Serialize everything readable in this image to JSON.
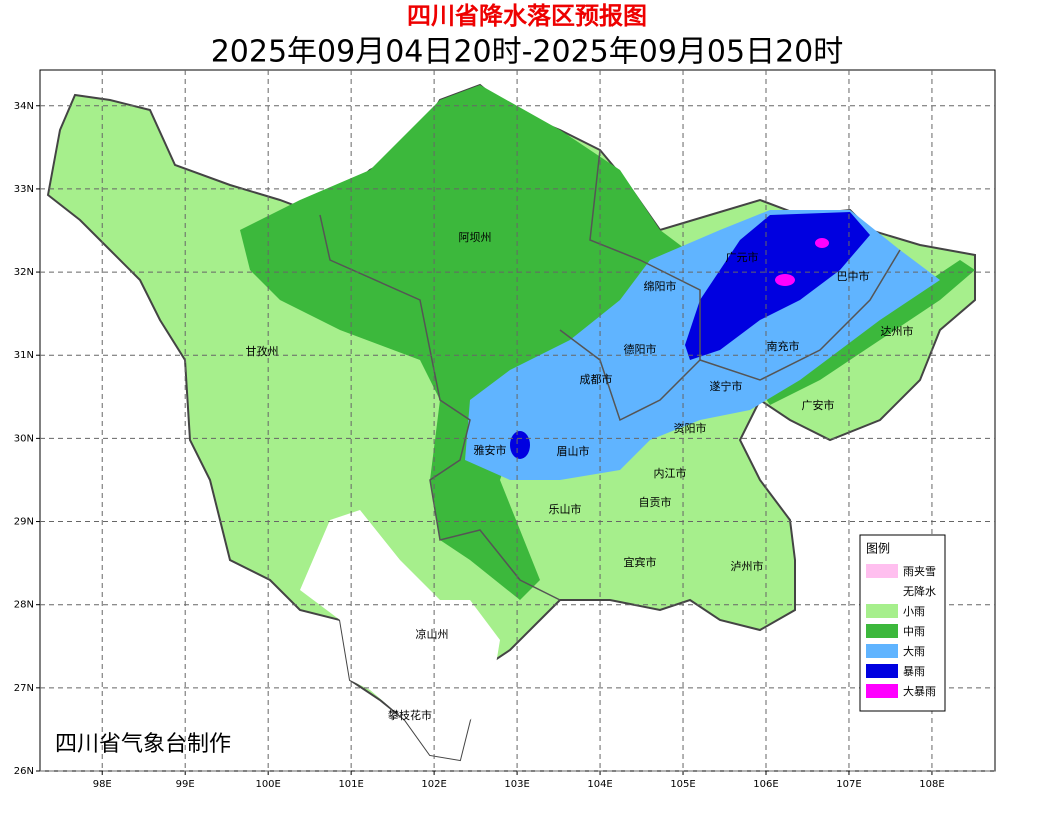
{
  "header": {
    "title": "四川省降水落区预报图",
    "subtitle": "2025年09月04日20时-2025年09月05日20时"
  },
  "map": {
    "xlim": [
      97.25,
      108.76
    ],
    "ylim": [
      26,
      34.43
    ],
    "grid": true,
    "xticks": [
      {
        "value": 98,
        "label": "98E"
      },
      {
        "value": 99,
        "label": "99E"
      },
      {
        "value": 100,
        "label": "100E"
      },
      {
        "value": 101,
        "label": "101E"
      },
      {
        "value": 102,
        "label": "102E"
      },
      {
        "value": 103,
        "label": "103E"
      },
      {
        "value": 104,
        "label": "104E"
      },
      {
        "value": 105,
        "label": "105E"
      },
      {
        "value": 106,
        "label": "106E"
      },
      {
        "value": 107,
        "label": "107E"
      },
      {
        "value": 108,
        "label": "108E"
      }
    ],
    "yticks": [
      {
        "value": 26,
        "label": "26N"
      },
      {
        "value": 27,
        "label": "27N"
      },
      {
        "value": 28,
        "label": "28N"
      },
      {
        "value": 29,
        "label": "29N"
      },
      {
        "value": 30,
        "label": "30N"
      },
      {
        "value": 31,
        "label": "31N"
      },
      {
        "value": 32,
        "label": "32N"
      },
      {
        "value": 33,
        "label": "33N"
      },
      {
        "value": 34,
        "label": "34N"
      }
    ],
    "places": [
      "阿坝州",
      "甘孜州",
      "绵阳市",
      "广元市",
      "巴中市",
      "达州市",
      "南充市",
      "德阳市",
      "成都市",
      "遂宁市",
      "广安市",
      "资阳市",
      "雅安市",
      "眉山市",
      "内江市",
      "自贡市",
      "乐山市",
      "宜宾市",
      "泸州市",
      "凉山州",
      "攀枝花市"
    ],
    "credit": "四川省气象台制作"
  },
  "legend": {
    "title": "图例",
    "items": [
      {
        "name": "雨夹雪",
        "color": "#ffbfef"
      },
      {
        "name": "无降水",
        "color": "#ffffff"
      },
      {
        "name": "小雨",
        "color": "#a6ef8c"
      },
      {
        "name": "中雨",
        "color": "#3cb83c"
      },
      {
        "name": "大雨",
        "color": "#60b4ff"
      },
      {
        "name": "暴雨",
        "color": "#0000e0"
      },
      {
        "name": "大暴雨",
        "color": "#ff00ff"
      }
    ]
  }
}
